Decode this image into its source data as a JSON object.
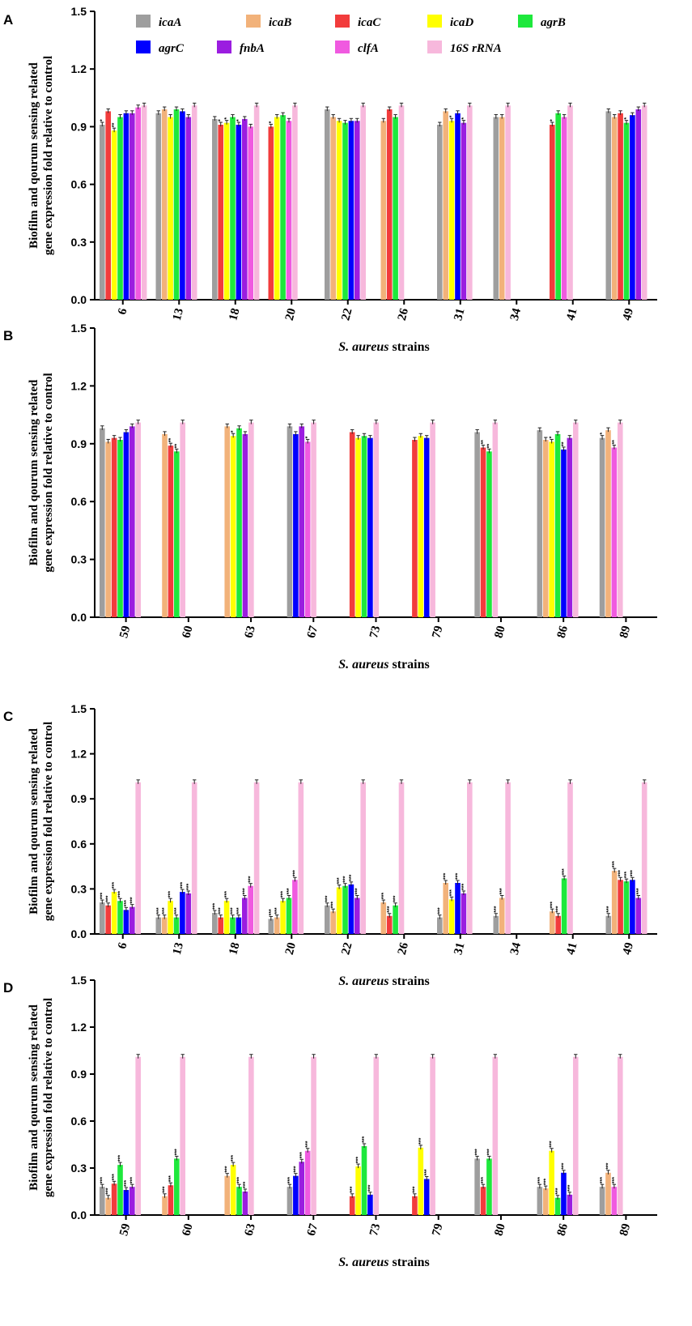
{
  "legend": {
    "series": [
      {
        "name": "icaA",
        "color": "#9e9e9e"
      },
      {
        "name": "icaB",
        "color": "#f2b27a"
      },
      {
        "name": "icaC",
        "color": "#f23c3c"
      },
      {
        "name": "icaD",
        "color": "#ffff00"
      },
      {
        "name": "agrB",
        "color": "#1ee83c"
      },
      {
        "name": "agrC",
        "color": "#0000ff"
      },
      {
        "name": "fnbA",
        "color": "#9b1de0"
      },
      {
        "name": "clfA",
        "color": "#f05ae0"
      },
      {
        "name": "16S rRNA",
        "color": "#f7b8dc"
      }
    ]
  },
  "chart_data": [
    {
      "panel": "A",
      "type": "bar",
      "ylabel_line1": "Biofilm and qourum sensing related",
      "ylabel_line2": "gene expression fold relative to control",
      "xlabel_italic": "S. aureus",
      "xlabel_rest": " strains",
      "ylim": [
        0,
        1.5
      ],
      "yticks": [
        "0.0",
        "0.3",
        "0.6",
        "0.9",
        "1.2",
        "1.5"
      ],
      "categories": [
        "6",
        "13",
        "18",
        "20",
        "22",
        "26",
        "31",
        "34",
        "41",
        "49"
      ],
      "series": [
        {
          "name": "icaA",
          "values": [
            0.91,
            0.97,
            0.94,
            null,
            0.99,
            null,
            0.91,
            0.95,
            null,
            0.98
          ]
        },
        {
          "name": "icaB",
          "values": [
            null,
            0.99,
            null,
            null,
            0.95,
            0.93,
            0.98,
            0.95,
            null,
            0.95
          ]
        },
        {
          "name": "icaC",
          "values": [
            0.98,
            null,
            0.91,
            0.9,
            null,
            0.99,
            null,
            null,
            0.91,
            0.97
          ]
        },
        {
          "name": "icaD",
          "values": [
            0.88,
            0.95,
            0.92,
            0.95,
            0.93,
            null,
            0.93,
            null,
            null,
            null
          ]
        },
        {
          "name": "agrB",
          "values": [
            null,
            null,
            null,
            null,
            null,
            null,
            null,
            null,
            null,
            null
          ]
        },
        {
          "name": "agrC",
          "values": [
            0.97,
            0.98,
            0.91,
            null,
            0.93,
            null,
            0.97,
            null,
            null,
            0.96
          ]
        },
        {
          "name": "fnbA",
          "values": [
            0.97,
            0.95,
            0.94,
            null,
            0.93,
            null,
            0.92,
            null,
            null,
            0.99
          ]
        },
        {
          "name": "clfA",
          "values": [
            1.0,
            null,
            0.9,
            0.93,
            null,
            null,
            null,
            null,
            0.95,
            null
          ]
        },
        {
          "name": "16S rRNA",
          "values": [
            1.01,
            1.01,
            1.01,
            1.01,
            1.01,
            1.01,
            1.01,
            1.01,
            1.01,
            1.01
          ]
        }
      ],
      "extra_agrB": [
        0.95,
        0.99,
        0.95,
        0.96,
        0.92,
        0.95,
        null,
        null,
        0.97,
        0.92
      ],
      "significance": [
        {
          "cat": 0,
          "series": "icaA",
          "label": "*"
        },
        {
          "cat": 0,
          "series": "icaD",
          "label": "**"
        },
        {
          "cat": 2,
          "series": "icaC",
          "label": "*"
        },
        {
          "cat": 2,
          "series": "icaD",
          "label": "*"
        },
        {
          "cat": 2,
          "series": "agrC",
          "label": "*"
        },
        {
          "cat": 3,
          "series": "icaC",
          "label": "*"
        },
        {
          "cat": 6,
          "series": "icaD",
          "label": "*"
        },
        {
          "cat": 6,
          "series": "fnbA",
          "label": "*"
        },
        {
          "cat": 8,
          "series": "icaC",
          "label": "*"
        },
        {
          "cat": 9,
          "series": "agrB",
          "label": "*"
        }
      ]
    },
    {
      "panel": "B",
      "type": "bar",
      "ylabel_line1": "Biofilm and qourum sensing related",
      "ylabel_line2": "gene expression fold relative to control",
      "xlabel_italic": "S. aureus",
      "xlabel_rest": " strains",
      "ylim": [
        0,
        1.5
      ],
      "yticks": [
        "0.0",
        "0.3",
        "0.6",
        "0.9",
        "1.2",
        "1.5"
      ],
      "categories": [
        "59",
        "60",
        "63",
        "67",
        "73",
        "79",
        "80",
        "86",
        "89"
      ],
      "series": [
        {
          "name": "icaA",
          "values": [
            0.98,
            null,
            null,
            0.99,
            null,
            null,
            0.96,
            0.97,
            0.93
          ]
        },
        {
          "name": "icaB",
          "values": [
            0.91,
            0.95,
            0.99,
            null,
            null,
            null,
            null,
            0.92,
            0.97
          ]
        },
        {
          "name": "icaC",
          "values": [
            0.93,
            0.89,
            null,
            null,
            0.96,
            0.92,
            0.88,
            null,
            null
          ]
        },
        {
          "name": "icaD",
          "values": [
            null,
            null,
            0.94,
            null,
            0.93,
            0.94,
            null,
            0.91,
            null
          ]
        },
        {
          "name": "agrB",
          "values": [
            0.92,
            0.86,
            0.98,
            null,
            0.94,
            null,
            0.86,
            0.95,
            null
          ]
        },
        {
          "name": "agrC",
          "values": [
            0.96,
            null,
            null,
            0.95,
            0.93,
            0.93,
            null,
            0.87,
            null
          ]
        },
        {
          "name": "fnbA",
          "values": [
            0.99,
            null,
            0.95,
            0.99,
            null,
            null,
            null,
            0.93,
            null
          ]
        },
        {
          "name": "clfA",
          "values": [
            null,
            null,
            null,
            0.91,
            null,
            null,
            null,
            null,
            0.88
          ]
        },
        {
          "name": "16S rRNA",
          "values": [
            1.01,
            1.01,
            1.01,
            1.01,
            1.01,
            1.01,
            1.01,
            1.01,
            1.01
          ]
        }
      ],
      "significance": [
        {
          "cat": 1,
          "series": "icaC",
          "label": "**"
        },
        {
          "cat": 1,
          "series": "agrB",
          "label": "**"
        },
        {
          "cat": 2,
          "series": "icaD",
          "label": "*"
        },
        {
          "cat": 3,
          "series": "clfA",
          "label": "*"
        },
        {
          "cat": 6,
          "series": "icaC",
          "label": "**"
        },
        {
          "cat": 6,
          "series": "agrB",
          "label": "**"
        },
        {
          "cat": 7,
          "series": "icaD",
          "label": "*"
        },
        {
          "cat": 7,
          "series": "agrC",
          "label": "**"
        },
        {
          "cat": 8,
          "series": "icaA",
          "label": "*"
        },
        {
          "cat": 8,
          "series": "clfA",
          "label": "**"
        }
      ]
    },
    {
      "panel": "C",
      "type": "bar",
      "ylabel_line1": "Biofilm and qourum sensing related",
      "ylabel_line2": "gene expression fold relative to control",
      "xlabel_italic": "S. aureus",
      "xlabel_rest": " strains",
      "ylim": [
        0,
        1.5
      ],
      "yticks": [
        "0.0",
        "0.3",
        "0.6",
        "0.9",
        "1.2",
        "1.5"
      ],
      "categories": [
        "6",
        "13",
        "18",
        "20",
        "22",
        "26",
        "31",
        "34",
        "41",
        "49"
      ],
      "series": [
        {
          "name": "icaA",
          "values": [
            0.21,
            0.11,
            0.14,
            0.1,
            0.19,
            null,
            0.11,
            0.12,
            null,
            0.12
          ]
        },
        {
          "name": "icaB",
          "values": [
            null,
            0.11,
            null,
            0.11,
            0.15,
            0.21,
            0.34,
            0.24,
            0.15,
            0.42
          ]
        },
        {
          "name": "icaC",
          "values": [
            0.19,
            null,
            0.11,
            null,
            null,
            0.12,
            null,
            null,
            0.12,
            0.36
          ]
        },
        {
          "name": "icaD",
          "values": [
            0.28,
            0.22,
            0.22,
            0.22,
            0.31,
            null,
            0.23,
            null,
            null,
            null
          ]
        },
        {
          "name": "agrB",
          "values": [
            null,
            null,
            null,
            null,
            null,
            null,
            null,
            null,
            null,
            null
          ]
        },
        {
          "name": "agrC",
          "values": [
            0.16,
            0.28,
            0.11,
            null,
            0.33,
            null,
            0.34,
            null,
            null,
            0.36
          ]
        },
        {
          "name": "fnbA",
          "values": [
            0.18,
            0.27,
            0.24,
            null,
            0.24,
            null,
            0.27,
            null,
            null,
            0.24
          ]
        },
        {
          "name": "clfA",
          "values": [
            null,
            null,
            0.32,
            0.36,
            null,
            null,
            null,
            null,
            null,
            null
          ]
        },
        {
          "name": "16S rRNA",
          "values": [
            1.01,
            1.01,
            1.01,
            1.01,
            1.01,
            1.01,
            1.01,
            1.01,
            1.01,
            1.01
          ]
        }
      ],
      "extra_agrB": [
        0.22,
        0.11,
        0.11,
        0.24,
        0.32,
        0.19,
        null,
        null,
        0.37,
        0.35
      ],
      "significance_label": "***"
    },
    {
      "panel": "D",
      "type": "bar",
      "ylabel_line1": "Biofilm and qourum sensing related",
      "ylabel_line2": "gene expression fold relative to control",
      "xlabel_italic": "S. aureus",
      "xlabel_rest": " strains",
      "ylim": [
        0,
        1.5
      ],
      "yticks": [
        "0.0",
        "0.3",
        "0.6",
        "0.9",
        "1.2",
        "1.5"
      ],
      "categories": [
        "59",
        "60",
        "63",
        "67",
        "73",
        "79",
        "80",
        "86",
        "89"
      ],
      "series": [
        {
          "name": "icaA",
          "values": [
            0.18,
            null,
            null,
            0.18,
            null,
            null,
            0.36,
            0.18,
            0.18
          ]
        },
        {
          "name": "icaB",
          "values": [
            0.11,
            0.12,
            0.25,
            null,
            null,
            null,
            null,
            0.17,
            0.27
          ]
        },
        {
          "name": "icaC",
          "values": [
            0.2,
            0.19,
            null,
            null,
            0.12,
            0.12,
            0.18,
            null,
            null
          ]
        },
        {
          "name": "icaD",
          "values": [
            null,
            null,
            0.32,
            null,
            0.31,
            0.43,
            null,
            0.41,
            null
          ]
        },
        {
          "name": "agrB",
          "values": [
            0.32,
            0.36,
            0.18,
            null,
            0.44,
            null,
            0.36,
            0.11,
            null
          ]
        },
        {
          "name": "agrC",
          "values": [
            0.16,
            null,
            null,
            0.25,
            0.13,
            0.23,
            null,
            0.27,
            null
          ]
        },
        {
          "name": "fnbA",
          "values": [
            0.18,
            null,
            0.15,
            0.34,
            null,
            null,
            null,
            0.13,
            null
          ]
        },
        {
          "name": "clfA",
          "values": [
            null,
            null,
            null,
            0.41,
            null,
            null,
            null,
            null,
            0.18
          ]
        },
        {
          "name": "16S rRNA",
          "values": [
            1.01,
            1.01,
            1.01,
            1.01,
            1.01,
            1.01,
            1.01,
            1.01,
            1.01
          ]
        }
      ],
      "significance_label": "***"
    }
  ]
}
